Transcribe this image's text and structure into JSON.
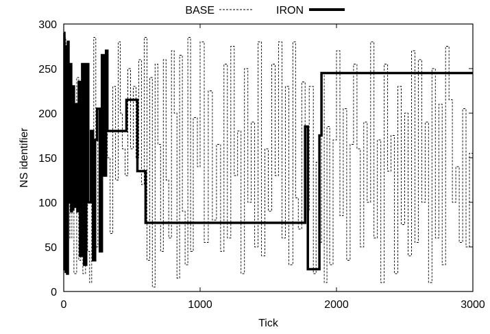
{
  "chart_data": {
    "type": "line",
    "xlabel": "Tick",
    "ylabel": "NS identifier",
    "xlim": [
      0,
      3000
    ],
    "ylim": [
      0,
      300
    ],
    "x_ticks": [
      "0",
      "1000",
      "2000",
      "3000"
    ],
    "y_ticks": [
      "0",
      "50",
      "100",
      "150",
      "200",
      "250",
      "300"
    ],
    "legend_position": "top-center",
    "grid": false,
    "series": [
      {
        "name": "BASE",
        "style": "dashed-thin",
        "color": "#000000",
        "step": true,
        "points": [
          [
            0,
            285
          ],
          [
            15,
            120
          ],
          [
            30,
            230
          ],
          [
            45,
            60
          ],
          [
            60,
            200
          ],
          [
            75,
            20
          ],
          [
            95,
            240
          ],
          [
            110,
            35
          ],
          [
            125,
            180
          ],
          [
            140,
            20
          ],
          [
            160,
            250
          ],
          [
            175,
            45
          ],
          [
            190,
            10
          ],
          [
            205,
            160
          ],
          [
            220,
            285
          ],
          [
            235,
            50
          ],
          [
            250,
            200
          ],
          [
            270,
            95
          ],
          [
            285,
            260
          ],
          [
            300,
            180
          ],
          [
            320,
            150
          ],
          [
            340,
            65
          ],
          [
            360,
            230
          ],
          [
            380,
            125
          ],
          [
            400,
            280
          ],
          [
            415,
            200
          ],
          [
            430,
            160
          ],
          [
            450,
            130
          ],
          [
            470,
            250
          ],
          [
            490,
            160
          ],
          [
            510,
            230
          ],
          [
            530,
            150
          ],
          [
            550,
            260
          ],
          [
            570,
            120
          ],
          [
            590,
            285
          ],
          [
            610,
            35
          ],
          [
            630,
            240
          ],
          [
            650,
            5
          ],
          [
            670,
            255
          ],
          [
            690,
            165
          ],
          [
            710,
            45
          ],
          [
            730,
            260
          ],
          [
            750,
            125
          ],
          [
            770,
            60
          ],
          [
            790,
            270
          ],
          [
            810,
            200
          ],
          [
            830,
            15
          ],
          [
            850,
            265
          ],
          [
            870,
            90
          ],
          [
            890,
            30
          ],
          [
            910,
            285
          ],
          [
            930,
            45
          ],
          [
            950,
            195
          ],
          [
            980,
            140
          ],
          [
            1000,
            280
          ],
          [
            1030,
            55
          ],
          [
            1060,
            225
          ],
          [
            1090,
            80
          ],
          [
            1120,
            165
          ],
          [
            1150,
            45
          ],
          [
            1175,
            255
          ],
          [
            1200,
            60
          ],
          [
            1225,
            275
          ],
          [
            1250,
            130
          ],
          [
            1275,
            180
          ],
          [
            1300,
            20
          ],
          [
            1325,
            250
          ],
          [
            1350,
            100
          ],
          [
            1375,
            190
          ],
          [
            1400,
            50
          ],
          [
            1425,
            280
          ],
          [
            1450,
            40
          ],
          [
            1475,
            160
          ],
          [
            1500,
            90
          ],
          [
            1525,
            255
          ],
          [
            1550,
            130
          ],
          [
            1575,
            280
          ],
          [
            1600,
            60
          ],
          [
            1625,
            230
          ],
          [
            1650,
            30
          ],
          [
            1680,
            280
          ],
          [
            1700,
            105
          ],
          [
            1720,
            70
          ],
          [
            1745,
            235
          ],
          [
            1770,
            90
          ],
          [
            1800,
            230
          ],
          [
            1830,
            20
          ],
          [
            1850,
            145
          ],
          [
            1870,
            55
          ],
          [
            1890,
            245
          ],
          [
            1910,
            10
          ],
          [
            1930,
            185
          ],
          [
            1950,
            30
          ],
          [
            1975,
            170
          ],
          [
            2000,
            270
          ],
          [
            2025,
            85
          ],
          [
            2050,
            205
          ],
          [
            2075,
            35
          ],
          [
            2100,
            165
          ],
          [
            2125,
            255
          ],
          [
            2150,
            160
          ],
          [
            2175,
            50
          ],
          [
            2200,
            190
          ],
          [
            2225,
            100
          ],
          [
            2250,
            280
          ],
          [
            2275,
            60
          ],
          [
            2300,
            170
          ],
          [
            2325,
            10
          ],
          [
            2350,
            255
          ],
          [
            2375,
            135
          ],
          [
            2400,
            175
          ],
          [
            2425,
            20
          ],
          [
            2450,
            230
          ],
          [
            2475,
            75
          ],
          [
            2500,
            200
          ],
          [
            2525,
            40
          ],
          [
            2550,
            270
          ],
          [
            2575,
            55
          ],
          [
            2600,
            260
          ],
          [
            2625,
            100
          ],
          [
            2650,
            190
          ],
          [
            2675,
            10
          ],
          [
            2700,
            250
          ],
          [
            2725,
            60
          ],
          [
            2750,
            210
          ],
          [
            2775,
            30
          ],
          [
            2800,
            275
          ],
          [
            2825,
            215
          ],
          [
            2850,
            100
          ],
          [
            2875,
            140
          ],
          [
            2900,
            55
          ],
          [
            2925,
            205
          ],
          [
            2950,
            50
          ],
          [
            2975,
            155
          ],
          [
            3000,
            160
          ]
        ]
      },
      {
        "name": "IRON",
        "style": "solid-thick",
        "color": "#000000",
        "step": true,
        "points": [
          [
            0,
            290
          ],
          [
            5,
            25
          ],
          [
            10,
            275
          ],
          [
            15,
            22
          ],
          [
            20,
            260
          ],
          [
            25,
            20
          ],
          [
            30,
            280
          ],
          [
            35,
            130
          ],
          [
            40,
            235
          ],
          [
            45,
            100
          ],
          [
            50,
            255
          ],
          [
            55,
            90
          ],
          [
            60,
            200
          ],
          [
            65,
            92
          ],
          [
            70,
            230
          ],
          [
            75,
            110
          ],
          [
            80,
            185
          ],
          [
            85,
            95
          ],
          [
            90,
            210
          ],
          [
            95,
            160
          ],
          [
            100,
            90
          ],
          [
            110,
            235
          ],
          [
            120,
            40
          ],
          [
            135,
            255
          ],
          [
            150,
            30
          ],
          [
            165,
            255
          ],
          [
            180,
            100
          ],
          [
            200,
            180
          ],
          [
            215,
            35
          ],
          [
            230,
            170
          ],
          [
            245,
            205
          ],
          [
            265,
            45
          ],
          [
            280,
            265
          ],
          [
            295,
            130
          ],
          [
            310,
            270
          ],
          [
            320,
            180
          ],
          [
            330,
            180
          ],
          [
            450,
            180
          ],
          [
            460,
            215
          ],
          [
            530,
            215
          ],
          [
            540,
            135
          ],
          [
            590,
            135
          ],
          [
            600,
            77
          ],
          [
            1760,
            77
          ],
          [
            1770,
            185
          ],
          [
            1790,
            25
          ],
          [
            1860,
            25
          ],
          [
            1875,
            175
          ],
          [
            1890,
            245
          ],
          [
            3000,
            245
          ]
        ]
      }
    ]
  }
}
